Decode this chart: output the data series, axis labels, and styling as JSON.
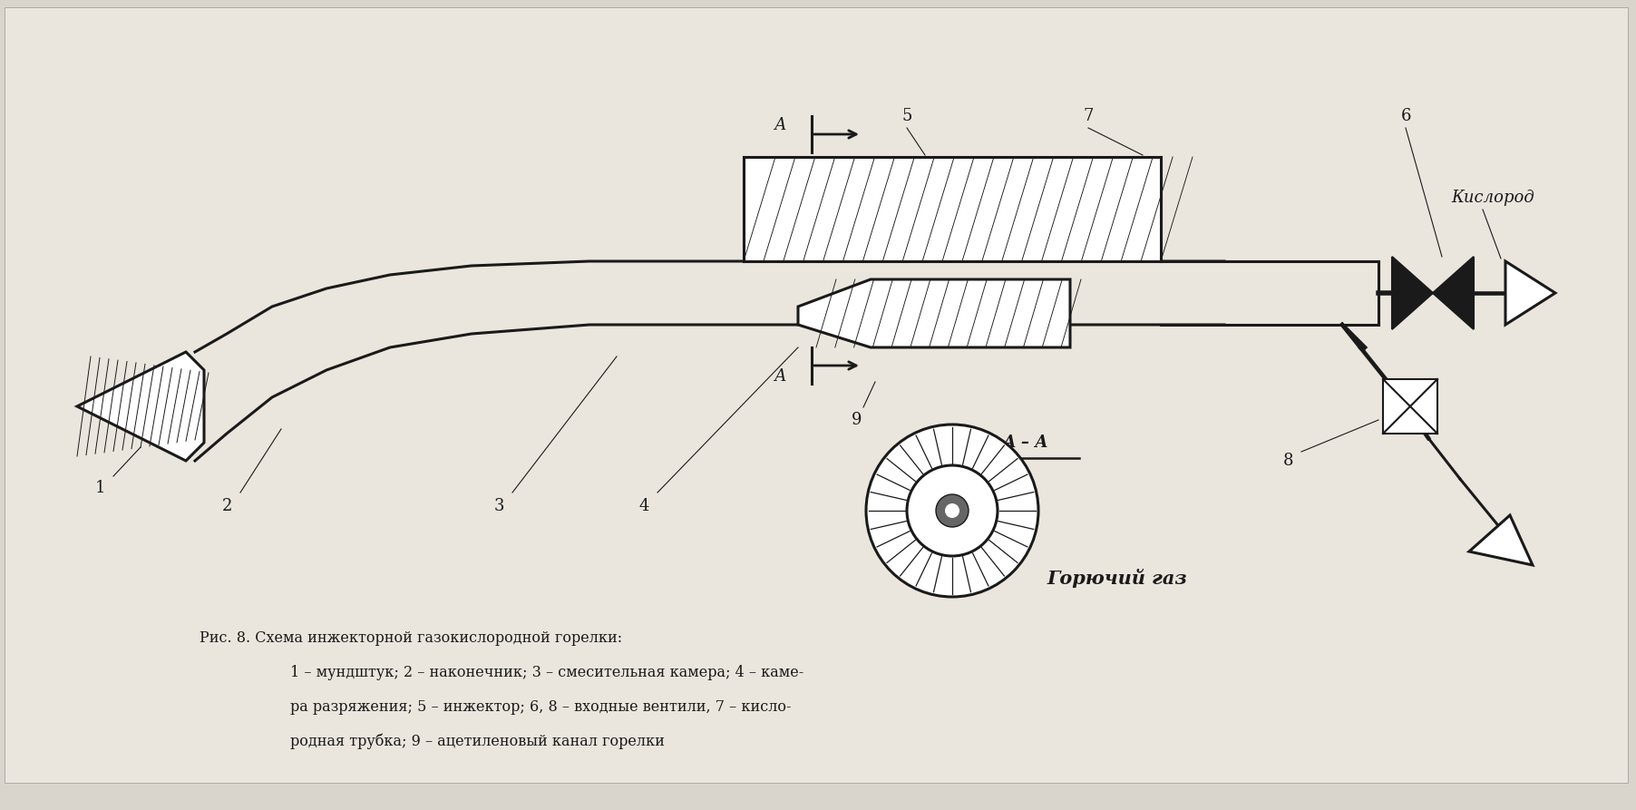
{
  "bg_color": "#d9d5cd",
  "line_color": "#1a1a1a",
  "title_line1": "Рис. 8. Схема инжекторной газокислородной горелки:",
  "title_line2": "1 – мундштук; 2 – наконечник; 3 – смесительная камера; 4 – каме-",
  "title_line3": "ра разряжения; 5 – инжектор; 6, 8 – входные вентили, 7 – кисло-",
  "title_line4": "родная трубка; 9 – ацетиленовый канал горелки",
  "label_A_top": "А",
  "label_A_bottom": "А",
  "label_AA": "А – А",
  "label_kislorod": "Кислород",
  "label_goryuchiy_gaz": "Горючий газ"
}
